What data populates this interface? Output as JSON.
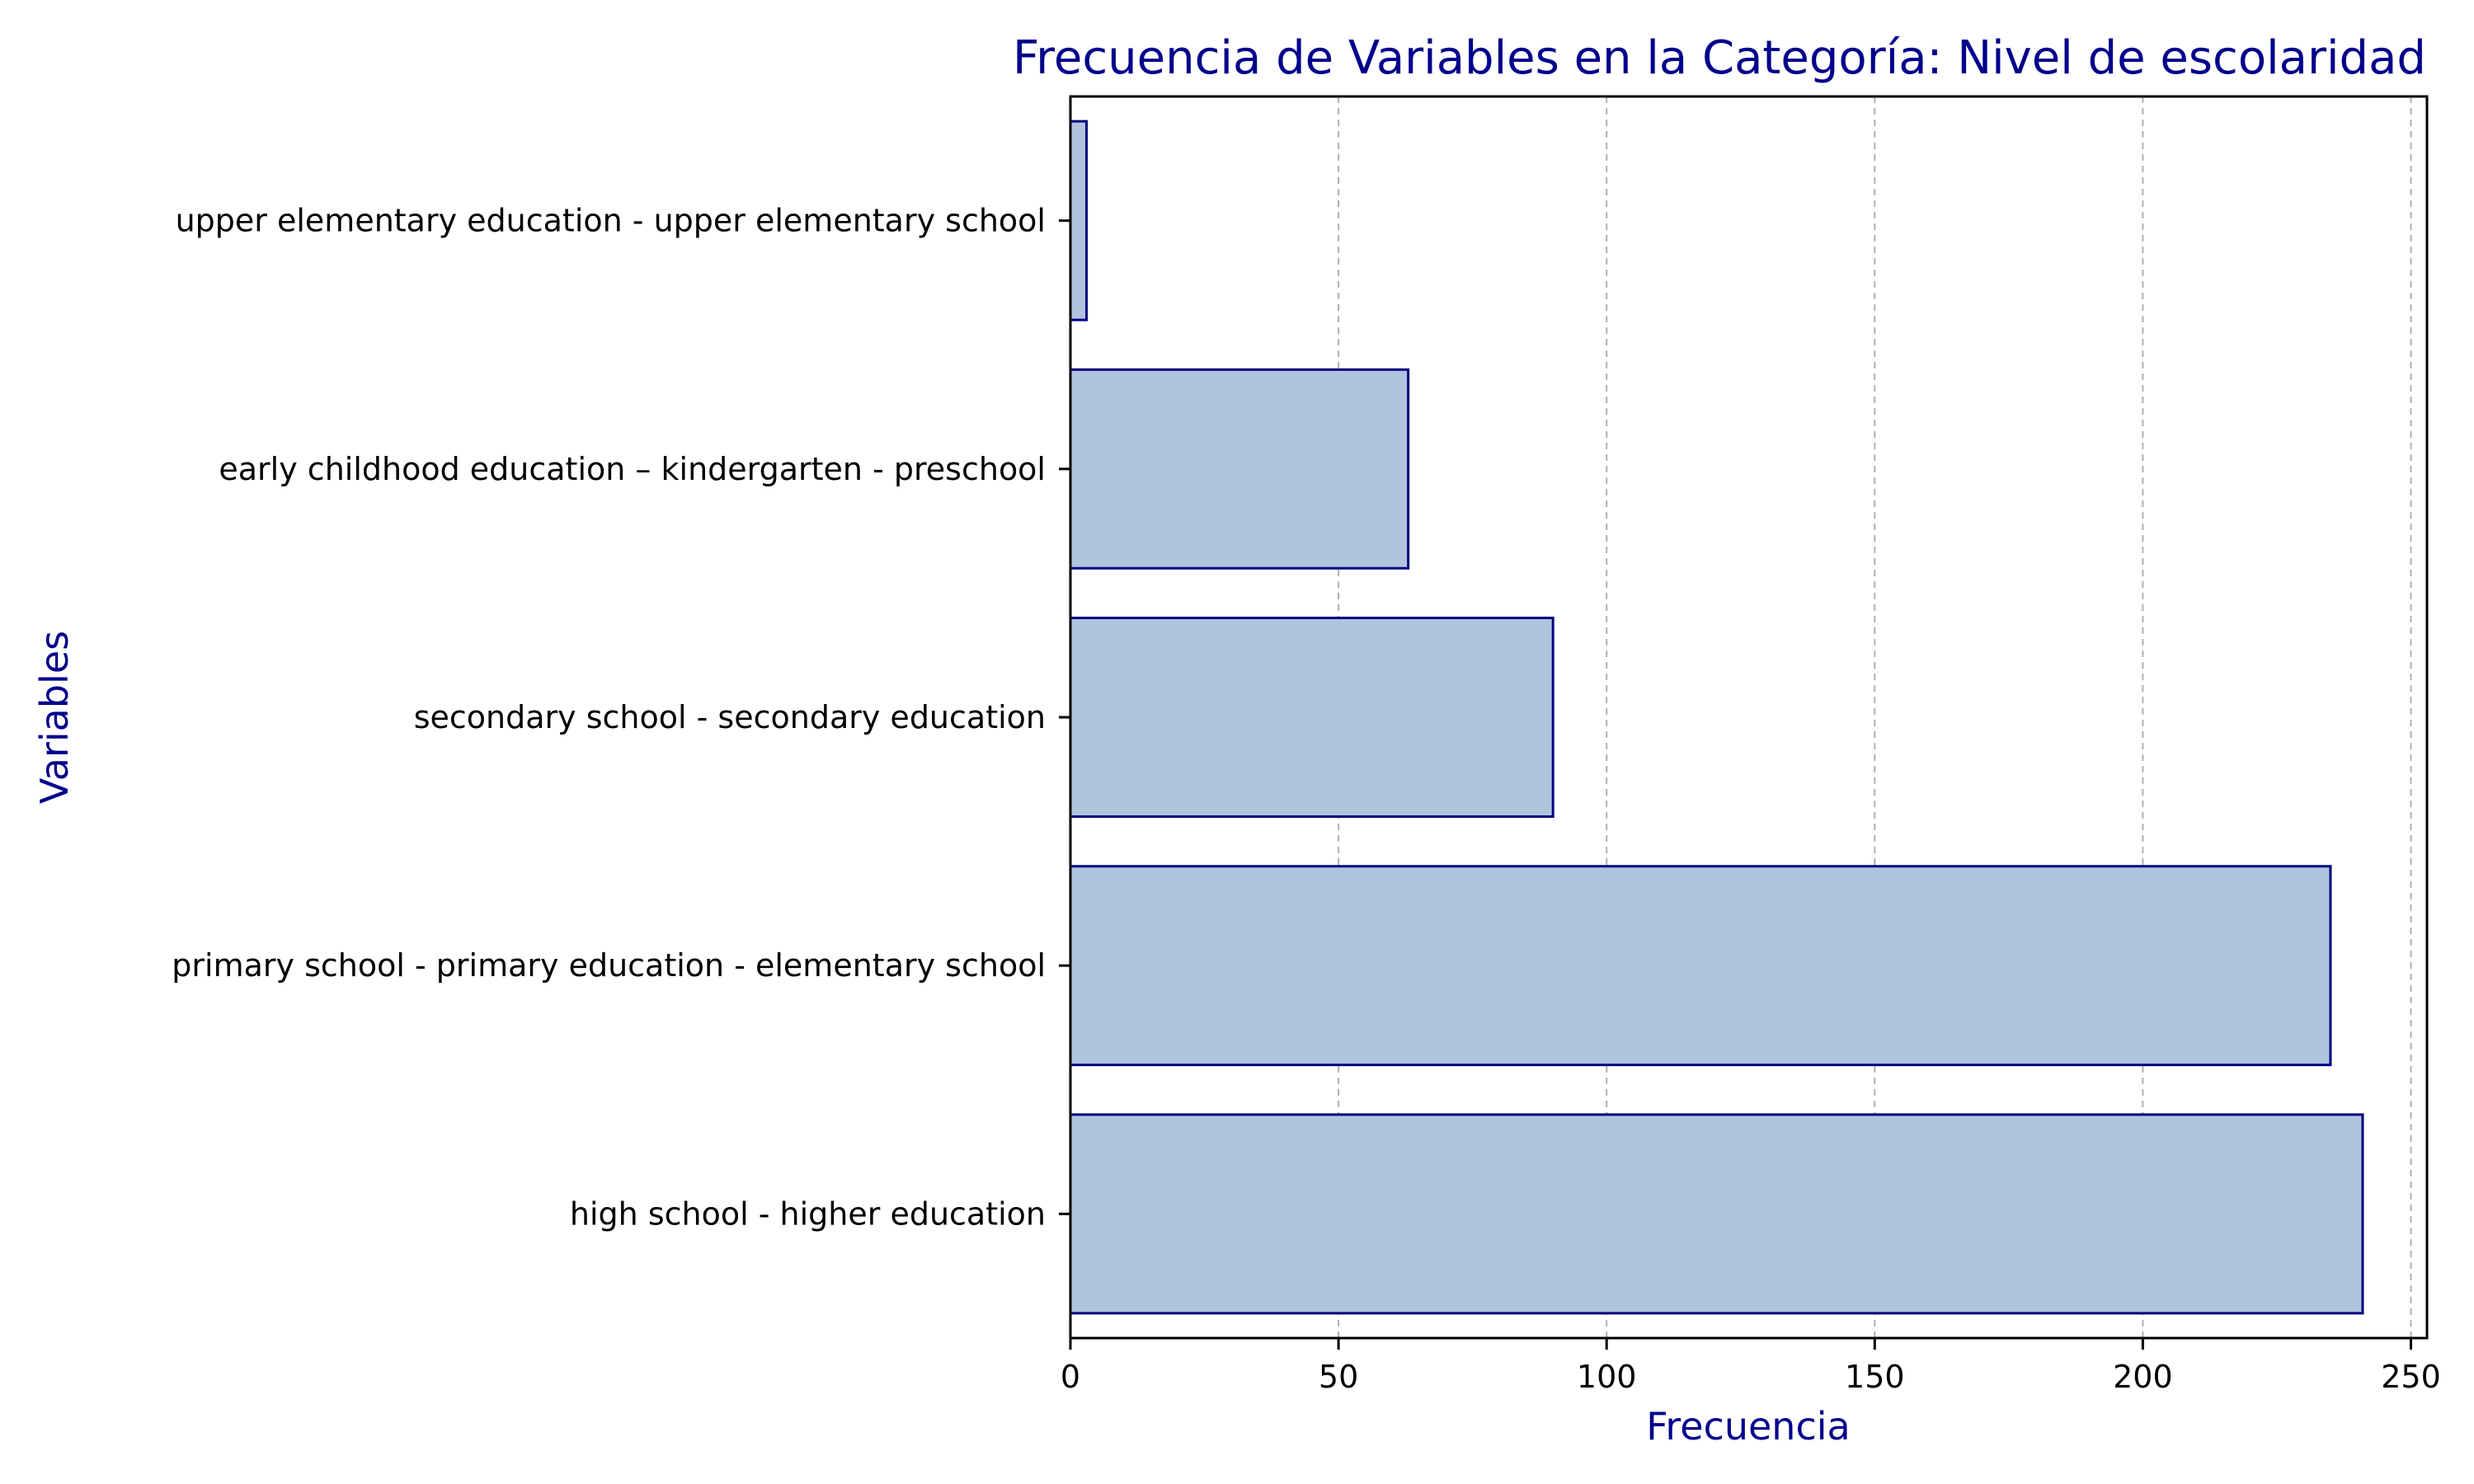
{
  "chart_data": {
    "type": "bar",
    "orientation": "horizontal",
    "title": "Frecuencia de Variables en la Categoría: Nivel de escolaridad",
    "xlabel": "Frecuencia",
    "ylabel": "Variables",
    "categories": [
      "upper elementary education - upper elementary school",
      "early childhood education – kindergarten - preschool",
      "secondary school - secondary education",
      "primary school - primary education - elementary school",
      "high school - higher education"
    ],
    "values": [
      3,
      63,
      90,
      235,
      241
    ],
    "xlim": [
      0,
      253
    ],
    "xticks": [
      0,
      50,
      100,
      150,
      200,
      250
    ],
    "grid": "vertical-dashed",
    "colors": {
      "bar_fill": "#b0c4de",
      "bar_edge": "#000080",
      "title": "#00008b",
      "axis_label": "#00008b",
      "grid": "#b0b0b0"
    }
  }
}
